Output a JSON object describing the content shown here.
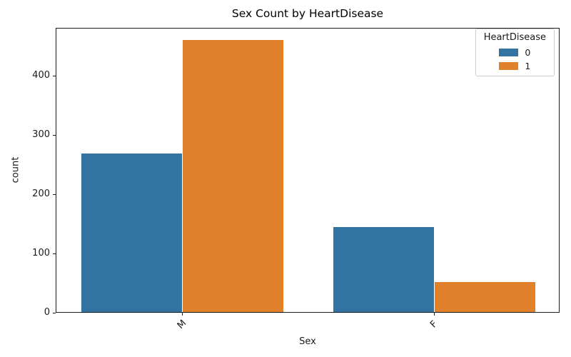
{
  "chart_data": {
    "type": "bar",
    "title": "Sex Count by HeartDisease",
    "xlabel": "Sex",
    "ylabel": "count",
    "categories": [
      "M",
      "F"
    ],
    "series": [
      {
        "name": "0",
        "color": "#3274a1",
        "values": [
          267,
          143
        ]
      },
      {
        "name": "1",
        "color": "#e1812c",
        "values": [
          458,
          50
        ]
      }
    ],
    "legend_title": "HeartDisease",
    "legend_position": "upper right",
    "ylim": [
      0,
      480
    ],
    "yticks": [
      0,
      100,
      200,
      300,
      400
    ],
    "grid": false,
    "xtick_rotation": 45,
    "bar_group_width_fraction": 0.8,
    "colors": {
      "spine": "#1a1a1a",
      "background": "#ffffff",
      "legend_border": "#cccccc"
    }
  }
}
